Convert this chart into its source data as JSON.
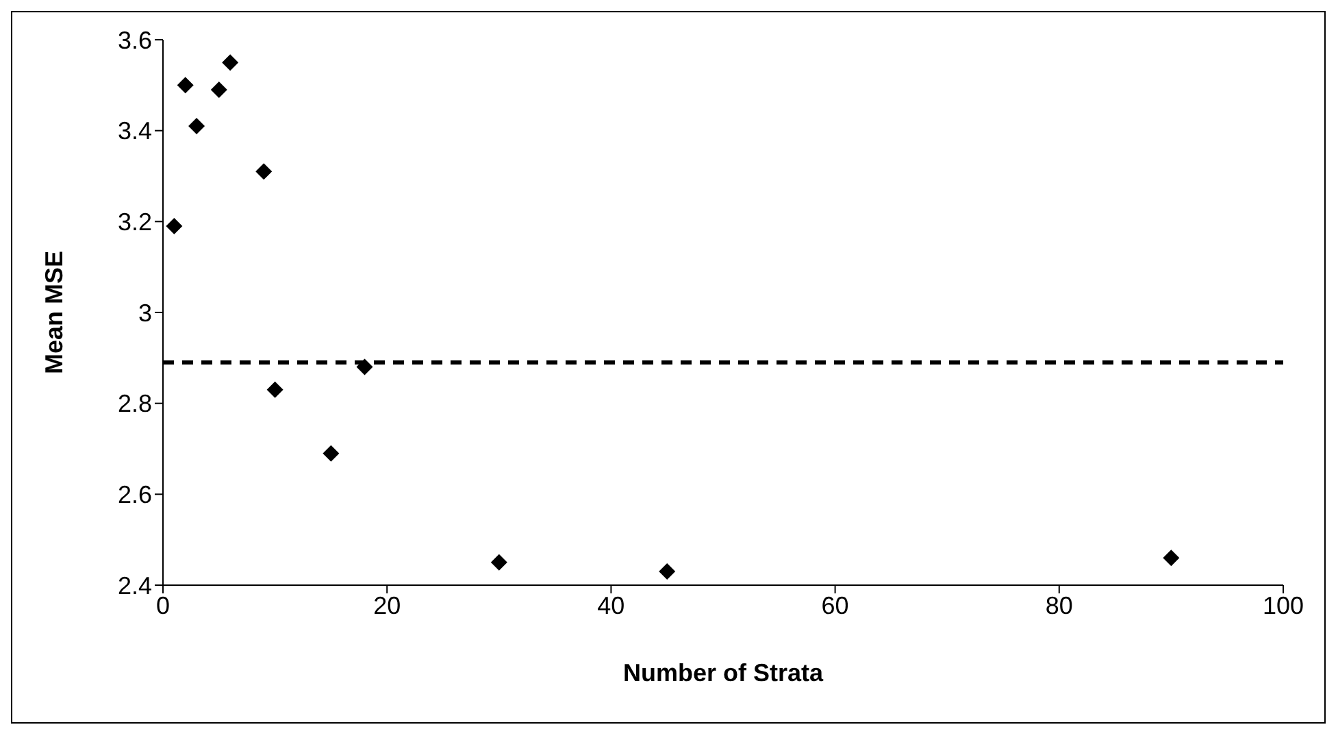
{
  "chart_data": {
    "type": "scatter",
    "xlabel": "Number of Strata",
    "ylabel": "Mean MSE",
    "x": [
      1,
      2,
      3,
      5,
      6,
      9,
      10,
      15,
      18,
      30,
      45,
      90
    ],
    "values": [
      3.19,
      3.5,
      3.41,
      3.49,
      3.55,
      3.31,
      2.83,
      2.69,
      2.88,
      2.45,
      2.43,
      2.46
    ],
    "color": "#000000",
    "marker": "diamond",
    "xlim": [
      0,
      100
    ],
    "xticks": [
      0,
      20,
      40,
      60,
      80,
      100
    ],
    "ylim": [
      2.4,
      3.6
    ],
    "yticks": [
      2.4,
      2.6,
      2.8,
      3,
      3.2,
      3.4,
      3.6
    ],
    "ref_lines": [
      {
        "axis": "y",
        "value": 2.89,
        "label": null,
        "color": "#000000",
        "line_style": "dashed"
      }
    ],
    "grid": false,
    "legend": false
  }
}
